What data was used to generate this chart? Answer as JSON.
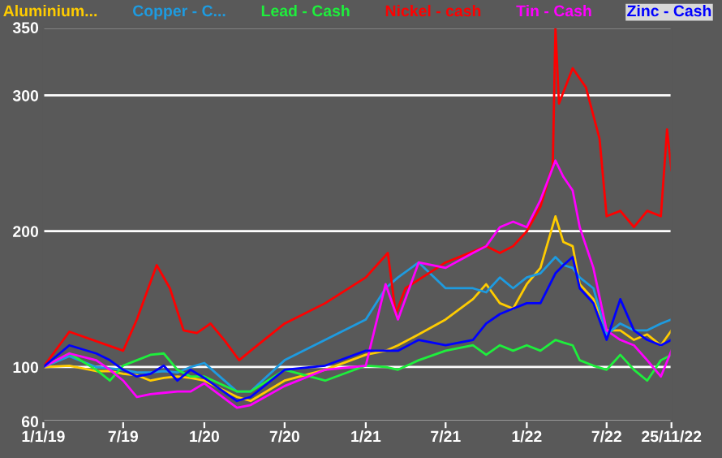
{
  "chart_data": {
    "type": "line",
    "ylim": [
      60,
      350
    ],
    "yticks": [
      60,
      100,
      200,
      300,
      350
    ],
    "xlim": [
      "2019-01-01",
      "2022-11-25"
    ],
    "xticks": [
      {
        "value": "2019-01-01",
        "label": "1/1/19"
      },
      {
        "value": "2019-07-01",
        "label": "7/19"
      },
      {
        "value": "2020-01-01",
        "label": "1/20"
      },
      {
        "value": "2020-07-01",
        "label": "7/20"
      },
      {
        "value": "2021-01-01",
        "label": "1/21"
      },
      {
        "value": "2021-07-01",
        "label": "7/21"
      },
      {
        "value": "2022-01-01",
        "label": "1/22"
      },
      {
        "value": "2022-07-01",
        "label": "7/22"
      },
      {
        "value": "2022-11-25",
        "label": "25/11/22"
      }
    ],
    "grid": "y",
    "legend": "top",
    "marker": "none",
    "line_style": "solid",
    "x": [
      "2019-01-01",
      "2019-03-01",
      "2019-05-01",
      "2019-06-01",
      "2019-07-01",
      "2019-08-01",
      "2019-09-01",
      "2019-10-01",
      "2019-11-01",
      "2019-12-01",
      "2020-01-01",
      "2020-03-15",
      "2020-04-15",
      "2020-07-01",
      "2020-10-01",
      "2021-01-01",
      "2021-02-15",
      "2021-03-15",
      "2021-05-01",
      "2021-07-01",
      "2021-09-01",
      "2021-10-01",
      "2021-11-01",
      "2021-12-01",
      "2022-01-01",
      "2022-02-01",
      "2022-03-07",
      "2022-03-25",
      "2022-04-15",
      "2022-05-01",
      "2022-06-01",
      "2022-07-01",
      "2022-08-01",
      "2022-09-01",
      "2022-10-01",
      "2022-11-01",
      "2022-11-25"
    ],
    "series": [
      {
        "name": "Aluminium...",
        "color": "#ffcc00",
        "values": [
          100,
          101,
          97,
          97,
          95,
          94,
          90,
          92,
          93,
          92,
          90,
          78,
          75,
          90,
          98,
          109,
          112,
          116,
          124,
          135,
          150,
          161,
          147,
          143,
          161,
          173,
          211,
          192,
          189,
          161,
          150,
          127,
          127,
          120,
          124,
          116,
          127
        ]
      },
      {
        "name": "Copper - C...",
        "color": "#1e9be0",
        "values": [
          100,
          108,
          100,
          99,
          98,
          96,
          96,
          97,
          96,
          100,
          103,
          82,
          82,
          105,
          120,
          135,
          158,
          166,
          177,
          158,
          158,
          155,
          166,
          158,
          166,
          169,
          181,
          175,
          173,
          166,
          158,
          124,
          132,
          127,
          127,
          132,
          135
        ]
      },
      {
        "name": "Lead - Cash",
        "color": "#1eef3c",
        "values": [
          100,
          110,
          98,
          90,
          101,
          105,
          109,
          110,
          98,
          93,
          93,
          82,
          82,
          98,
          90,
          101,
          100,
          98,
          105,
          112,
          116,
          109,
          116,
          112,
          116,
          112,
          120,
          118,
          116,
          105,
          101,
          98,
          109,
          98,
          90,
          105,
          109
        ]
      },
      {
        "name": "Nickel - cash",
        "color": "#ff0000",
        "x": [
          "2019-01-01",
          "2019-03-01",
          "2019-07-01",
          "2019-08-01",
          "2019-09-15",
          "2019-10-15",
          "2019-11-15",
          "2019-12-15",
          "2020-01-15",
          "2020-02-15",
          "2020-03-20",
          "2020-04-15",
          "2020-07-01",
          "2020-10-01",
          "2021-01-01",
          "2021-02-20",
          "2021-03-10",
          "2021-04-01",
          "2021-07-01",
          "2021-10-01",
          "2021-11-01",
          "2021-12-01",
          "2022-01-01",
          "2022-02-01",
          "2022-03-01",
          "2022-03-07",
          "2022-03-15",
          "2022-04-15",
          "2022-05-15",
          "2022-06-15",
          "2022-07-01",
          "2022-08-01",
          "2022-09-01",
          "2022-10-01",
          "2022-11-01",
          "2022-11-15",
          "2022-11-25"
        ],
        "values": [
          100,
          126,
          112,
          135,
          175,
          158,
          127,
          125,
          132,
          120,
          105,
          112,
          132,
          147,
          166,
          184,
          139,
          158,
          177,
          189,
          184,
          189,
          200,
          218,
          249,
          350,
          294,
          320,
          306,
          268,
          211,
          215,
          203,
          215,
          211,
          275,
          245
        ]
      },
      {
        "name": "Tin - Cash",
        "color": "#ff00ff",
        "values": [
          100,
          110,
          105,
          98,
          90,
          78,
          80,
          81,
          82,
          82,
          88,
          70,
          72,
          86,
          98,
          101,
          161,
          135,
          177,
          173,
          184,
          189,
          203,
          207,
          203,
          223,
          252,
          240,
          230,
          203,
          173,
          127,
          120,
          116,
          105,
          93,
          112
        ]
      },
      {
        "name": "Zinc - Cash",
        "color": "#0000ff",
        "values": [
          100,
          116,
          110,
          105,
          98,
          93,
          95,
          101,
          90,
          98,
          92,
          75,
          78,
          98,
          101,
          112,
          112,
          112,
          120,
          116,
          120,
          132,
          139,
          143,
          147,
          147,
          169,
          175,
          181,
          158,
          147,
          120,
          150,
          127,
          120,
          116,
          120
        ]
      }
    ]
  }
}
